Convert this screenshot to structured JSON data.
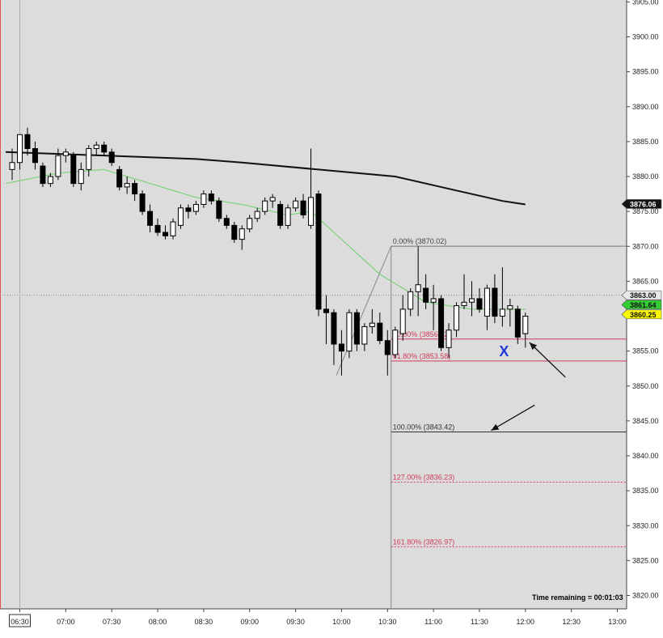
{
  "chart_data": {
    "type": "candlestick",
    "instrument_note": "",
    "x_axis": {
      "ticks": [
        "06:30",
        "07:00",
        "07:30",
        "08:00",
        "08:30",
        "09:00",
        "09:30",
        "10:00",
        "10:30",
        "11:00",
        "11:30",
        "12:00",
        "12:30",
        "13:00"
      ],
      "first_tick_boxed": true
    },
    "y_axis": {
      "range": [
        3818,
        3906
      ],
      "ticks": [
        "3820.00",
        "3825.00",
        "3830.00",
        "3835.00",
        "3840.00",
        "3845.00",
        "3850.00",
        "3855.00",
        "3860.00",
        "3865.00",
        "3870.00",
        "3875.00",
        "3880.00",
        "3885.00",
        "3890.00",
        "3895.00",
        "3900.00",
        "3905.00"
      ],
      "tick_values": [
        3820,
        3825,
        3830,
        3835,
        3840,
        3845,
        3850,
        3855,
        3860,
        3865,
        3870,
        3875,
        3880,
        3885,
        3890,
        3895,
        3900,
        3905
      ]
    },
    "bar_interval_minutes": 5,
    "candles": [
      {
        "t": "06:25",
        "o": 3881,
        "h": 3884,
        "l": 3879.5,
        "c": 3882
      },
      {
        "t": "06:30",
        "o": 3882,
        "h": 3885.5,
        "l": 3881,
        "c": 3886
      },
      {
        "t": "06:35",
        "o": 3886,
        "h": 3887,
        "l": 3883,
        "c": 3884
      },
      {
        "t": "06:40",
        "o": 3884,
        "h": 3885,
        "l": 3881,
        "c": 3882
      },
      {
        "t": "06:45",
        "o": 3881.5,
        "h": 3882,
        "l": 3878.5,
        "c": 3879
      },
      {
        "t": "06:50",
        "o": 3879,
        "h": 3880.5,
        "l": 3878.5,
        "c": 3880
      },
      {
        "t": "06:55",
        "o": 3880,
        "h": 3884,
        "l": 3879.5,
        "c": 3883
      },
      {
        "t": "07:00",
        "o": 3883,
        "h": 3884,
        "l": 3882,
        "c": 3883.5
      },
      {
        "t": "07:05",
        "o": 3883,
        "h": 3883.5,
        "l": 3878.5,
        "c": 3879
      },
      {
        "t": "07:10",
        "o": 3879,
        "h": 3882,
        "l": 3878,
        "c": 3881
      },
      {
        "t": "07:15",
        "o": 3881,
        "h": 3884.5,
        "l": 3880,
        "c": 3884
      },
      {
        "t": "07:20",
        "o": 3884,
        "h": 3885,
        "l": 3883,
        "c": 3884.5
      },
      {
        "t": "07:25",
        "o": 3884.5,
        "h": 3885,
        "l": 3883,
        "c": 3883.5
      },
      {
        "t": "07:30",
        "o": 3883.5,
        "h": 3884,
        "l": 3881.5,
        "c": 3882
      },
      {
        "t": "07:35",
        "o": 3881,
        "h": 3881.5,
        "l": 3878,
        "c": 3878.5
      },
      {
        "t": "07:40",
        "o": 3878.5,
        "h": 3880,
        "l": 3877.5,
        "c": 3879
      },
      {
        "t": "07:45",
        "o": 3879,
        "h": 3879.5,
        "l": 3876.5,
        "c": 3877.5
      },
      {
        "t": "07:50",
        "o": 3877.5,
        "h": 3878,
        "l": 3874.5,
        "c": 3875
      },
      {
        "t": "07:55",
        "o": 3875,
        "h": 3876,
        "l": 3872,
        "c": 3873
      },
      {
        "t": "08:00",
        "o": 3873,
        "h": 3874,
        "l": 3871.5,
        "c": 3872
      },
      {
        "t": "08:05",
        "o": 3872,
        "h": 3873,
        "l": 3871,
        "c": 3871.5
      },
      {
        "t": "08:10",
        "o": 3871.5,
        "h": 3874,
        "l": 3871,
        "c": 3873.5
      },
      {
        "t": "08:15",
        "o": 3873,
        "h": 3876,
        "l": 3872.5,
        "c": 3875.5
      },
      {
        "t": "08:20",
        "o": 3875.5,
        "h": 3876,
        "l": 3874,
        "c": 3875
      },
      {
        "t": "08:25",
        "o": 3875,
        "h": 3876.5,
        "l": 3874.5,
        "c": 3876
      },
      {
        "t": "08:30",
        "o": 3876,
        "h": 3878,
        "l": 3875.5,
        "c": 3877.5
      },
      {
        "t": "08:35",
        "o": 3877.5,
        "h": 3878,
        "l": 3876,
        "c": 3876.5
      },
      {
        "t": "08:40",
        "o": 3876.5,
        "h": 3877,
        "l": 3873.5,
        "c": 3874
      },
      {
        "t": "08:45",
        "o": 3874,
        "h": 3874.5,
        "l": 3872.5,
        "c": 3873
      },
      {
        "t": "08:50",
        "o": 3873,
        "h": 3873.5,
        "l": 3870.5,
        "c": 3871
      },
      {
        "t": "08:55",
        "o": 3871,
        "h": 3873,
        "l": 3869.5,
        "c": 3872.5
      },
      {
        "t": "09:00",
        "o": 3872.5,
        "h": 3874.5,
        "l": 3872,
        "c": 3874
      },
      {
        "t": "09:05",
        "o": 3874,
        "h": 3875.5,
        "l": 3873.5,
        "c": 3875
      },
      {
        "t": "09:10",
        "o": 3875,
        "h": 3877,
        "l": 3874.5,
        "c": 3876.5
      },
      {
        "t": "09:15",
        "o": 3876.5,
        "h": 3877.5,
        "l": 3875.5,
        "c": 3877
      },
      {
        "t": "09:20",
        "o": 3876,
        "h": 3876.5,
        "l": 3872.5,
        "c": 3873
      },
      {
        "t": "09:25",
        "o": 3873,
        "h": 3876,
        "l": 3872.5,
        "c": 3875.5
      },
      {
        "t": "09:30",
        "o": 3875.5,
        "h": 3877,
        "l": 3875,
        "c": 3876.5
      },
      {
        "t": "09:35",
        "o": 3876.5,
        "h": 3877.5,
        "l": 3874,
        "c": 3874.5
      },
      {
        "t": "09:40",
        "o": 3873,
        "h": 3884,
        "l": 3872.5,
        "c": 3877
      },
      {
        "t": "09:45",
        "o": 3877.5,
        "h": 3878,
        "l": 3860,
        "c": 3861
      },
      {
        "t": "09:50",
        "o": 3861,
        "h": 3863,
        "l": 3856,
        "c": 3860.5
      },
      {
        "t": "09:55",
        "o": 3860.5,
        "h": 3861,
        "l": 3853,
        "c": 3856
      },
      {
        "t": "10:00",
        "o": 3856,
        "h": 3858,
        "l": 3851.5,
        "c": 3855
      },
      {
        "t": "10:05",
        "o": 3855,
        "h": 3861,
        "l": 3854,
        "c": 3860.5
      },
      {
        "t": "10:10",
        "o": 3860.5,
        "h": 3861,
        "l": 3855,
        "c": 3856
      },
      {
        "t": "10:15",
        "o": 3856,
        "h": 3859,
        "l": 3855,
        "c": 3858.5
      },
      {
        "t": "10:20",
        "o": 3858.5,
        "h": 3861,
        "l": 3857.5,
        "c": 3859
      },
      {
        "t": "10:25",
        "o": 3859,
        "h": 3860.5,
        "l": 3856,
        "c": 3856.5
      },
      {
        "t": "10:30",
        "o": 3856.5,
        "h": 3858,
        "l": 3851.5,
        "c": 3854.5
      },
      {
        "t": "10:35",
        "o": 3854.5,
        "h": 3858.5,
        "l": 3854,
        "c": 3858
      },
      {
        "t": "10:40",
        "o": 3857.5,
        "h": 3863,
        "l": 3856.5,
        "c": 3861
      },
      {
        "t": "10:45",
        "o": 3861,
        "h": 3864,
        "l": 3860,
        "c": 3863.5
      },
      {
        "t": "10:50",
        "o": 3863.5,
        "h": 3870,
        "l": 3860,
        "c": 3864.5
      },
      {
        "t": "10:55",
        "o": 3864,
        "h": 3866,
        "l": 3861,
        "c": 3862
      },
      {
        "t": "11:00",
        "o": 3862,
        "h": 3864.5,
        "l": 3858,
        "c": 3862.5
      },
      {
        "t": "11:05",
        "o": 3862.5,
        "h": 3863,
        "l": 3855,
        "c": 3855.5
      },
      {
        "t": "11:10",
        "o": 3855.5,
        "h": 3859,
        "l": 3854,
        "c": 3858
      },
      {
        "t": "11:15",
        "o": 3858,
        "h": 3862,
        "l": 3857,
        "c": 3861.5
      },
      {
        "t": "11:20",
        "o": 3861.5,
        "h": 3866,
        "l": 3861,
        "c": 3862
      },
      {
        "t": "11:25",
        "o": 3862,
        "h": 3865,
        "l": 3860,
        "c": 3862.5
      },
      {
        "t": "11:30",
        "o": 3862.5,
        "h": 3864,
        "l": 3860.5,
        "c": 3861
      },
      {
        "t": "11:35",
        "o": 3860,
        "h": 3864.5,
        "l": 3858,
        "c": 3864
      },
      {
        "t": "11:40",
        "o": 3864,
        "h": 3866,
        "l": 3859,
        "c": 3860
      },
      {
        "t": "11:45",
        "o": 3860,
        "h": 3867,
        "l": 3858.5,
        "c": 3861
      },
      {
        "t": "11:50",
        "o": 3861,
        "h": 3862.5,
        "l": 3858.5,
        "c": 3861.5
      },
      {
        "t": "11:55",
        "o": 3861,
        "h": 3861.5,
        "l": 3856,
        "c": 3857
      },
      {
        "t": "12:00",
        "o": 3857.5,
        "h": 3860.5,
        "l": 3855.5,
        "c": 3860
      }
    ],
    "ema_slow": {
      "name": "",
      "color": "#111111",
      "points": [
        [
          3883.5,
          0
        ],
        [
          3883,
          12
        ],
        [
          3882.5,
          24
        ],
        [
          3882,
          30
        ],
        [
          3881,
          40
        ],
        [
          3880,
          50
        ],
        [
          3878,
          58
        ],
        [
          3876.5,
          64
        ],
        [
          3876,
          67
        ]
      ]
    },
    "ema_fast": {
      "name": "",
      "color": "#6fcf6f",
      "points": [
        [
          3879,
          0
        ],
        [
          3880.5,
          6
        ],
        [
          3881,
          12
        ],
        [
          3879,
          18
        ],
        [
          3877,
          24
        ],
        [
          3876,
          30
        ],
        [
          3874.5,
          36
        ],
        [
          3875,
          39
        ],
        [
          3871,
          43
        ],
        [
          3866,
          48
        ],
        [
          3862,
          54
        ],
        [
          3861,
          60
        ],
        [
          3861,
          67
        ]
      ]
    },
    "fibonacci": {
      "anchor_high": 3870.02,
      "anchor_low": 3843.42,
      "levels": [
        {
          "label": "0.00% (3870.02)",
          "value": 3870.02,
          "color": "#777777",
          "style": "solid",
          "label_color": "#444444"
        },
        {
          "label": "50.00% (3856.72)",
          "value": 3856.72,
          "color": "#d23c5a",
          "style": "solid",
          "label_color": "#d23c5a"
        },
        {
          "label": "61.80% (3853.58)",
          "value": 3853.58,
          "color": "#d23c5a",
          "style": "solid",
          "label_color": "#d23c5a"
        },
        {
          "label": "100.00% (3843.42)",
          "value": 3843.42,
          "color": "#333333",
          "style": "solid",
          "label_color": "#333333"
        },
        {
          "label": "127.00% (3836.23)",
          "value": 3836.23,
          "color": "#d23c5a",
          "style": "dotted",
          "label_color": "#d23c5a"
        },
        {
          "label": "161.80% (3826.97)",
          "value": 3826.97,
          "color": "#d23c5a",
          "style": "dotted",
          "label_color": "#d23c5a"
        }
      ]
    },
    "price_badges": [
      {
        "label": "3876.06",
        "value": 3876.06,
        "bg": "#111111",
        "fg": "#ffffff"
      },
      {
        "label": "3863.00",
        "value": 3863.0,
        "bg": "#e8e8e8",
        "fg": "#111111"
      },
      {
        "label": "3861.64",
        "value": 3861.64,
        "bg": "#33cc33",
        "fg": "#111111"
      },
      {
        "label": "3860.25",
        "value": 3860.25,
        "bg": "#ffff00",
        "fg": "#111111"
      }
    ],
    "crosshair_price": 3863.0,
    "crosshair_time": "06:30",
    "marker": {
      "symbol": "X",
      "value": 3854.5,
      "t": "11:45",
      "color": "#1f3bd6"
    },
    "annotations_arrows": [
      {
        "name": "upper-arrow",
        "from": [
          3851.5,
          "12:25"
        ],
        "to": [
          3856,
          "12:00"
        ]
      },
      {
        "name": "lower-arrow",
        "from": [
          3847.5,
          "12:05"
        ],
        "to": [
          3843.4,
          "11:35"
        ]
      }
    ],
    "timer": {
      "text": "Time remaining = 00:01:03"
    },
    "colors": {
      "background": "#dcdcdc",
      "up_body": "#ffffff",
      "down_body": "#000000",
      "wick": "#000000"
    }
  }
}
